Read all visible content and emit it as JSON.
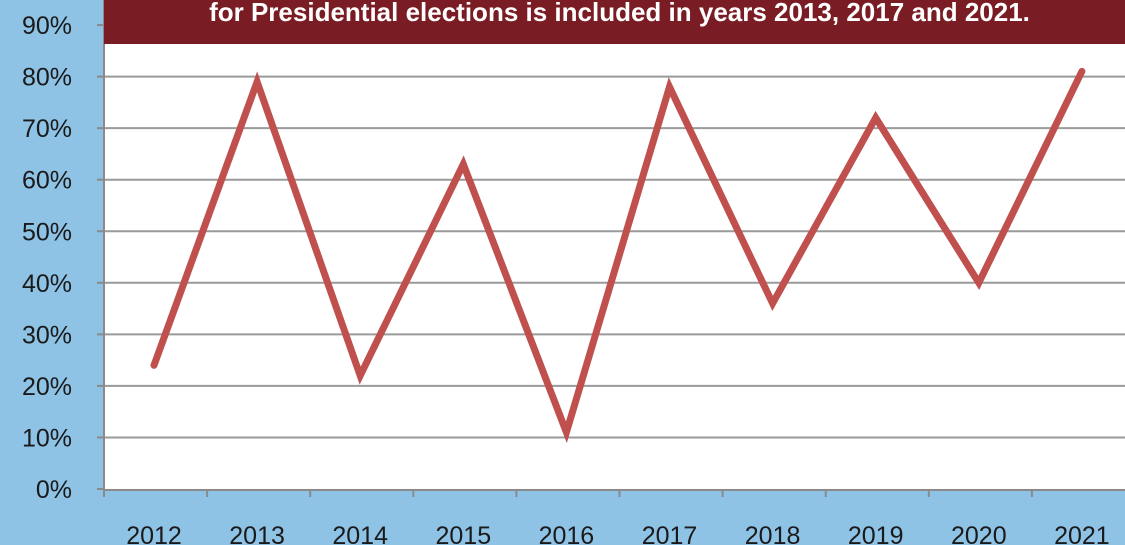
{
  "colors": {
    "background": "#8ec3e6",
    "plot_background": "#ffffff",
    "series": "#c0504d",
    "banner": "#7a1c24",
    "banner_text": "#ffffff",
    "gridlines": "#9a9a9a"
  },
  "chart_data": {
    "type": "line",
    "title": "",
    "note": "for Presidential elections is included in years 2013, 2017 and 2021.",
    "xlabel": "",
    "ylabel": "",
    "x": [
      "2012",
      "2013",
      "2014",
      "2015",
      "2016",
      "2017",
      "2018",
      "2019",
      "2020",
      "2021"
    ],
    "series": [
      {
        "name": "",
        "values": [
          24,
          79,
          22,
          63,
          11,
          78,
          36,
          72,
          40,
          81
        ]
      }
    ],
    "ylim": [
      0,
      90
    ],
    "yticks": [
      0,
      10,
      20,
      30,
      40,
      50,
      60,
      70,
      80,
      90
    ],
    "ytick_labels": [
      "0%",
      "10%",
      "20%",
      "30%",
      "40%",
      "50%",
      "60%",
      "70%",
      "80%",
      "90%"
    ],
    "grid": true,
    "legend": "none"
  }
}
